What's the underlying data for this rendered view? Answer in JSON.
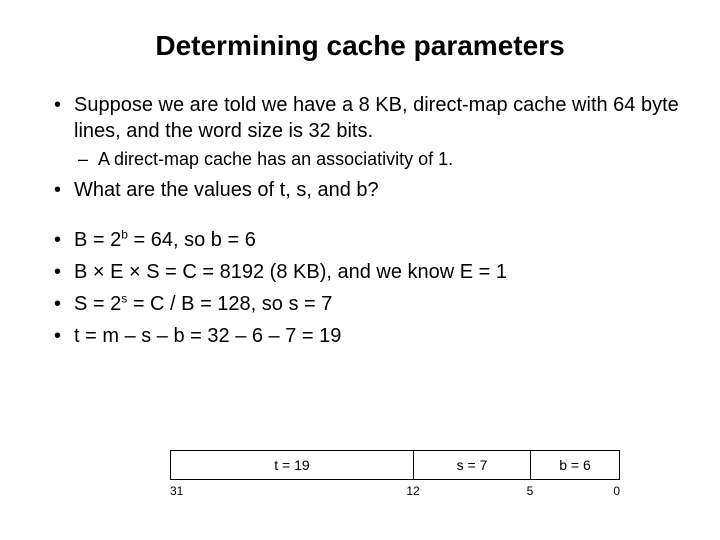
{
  "title": "Determining cache parameters",
  "bullets": {
    "b1": "Suppose we are told we have a 8 KB, direct-map cache with 64 byte lines, and the word size is 32 bits.",
    "sub1": "A direct-map cache has an associativity of 1.",
    "b2": "What are the values of t, s, and b?",
    "b3_pre": "B = 2",
    "b3_sup": "b",
    "b3_post": " = 64, so b = 6",
    "b4": "B × E × S = C = 8192 (8 KB), and we know E = 1",
    "b5_pre": "S = 2",
    "b5_sup": "s",
    "b5_post": " = C / B = 128, so s = 7",
    "b6": "t = m – s – b = 32 – 6 – 7 = 19"
  },
  "diagram": {
    "t_label": "t = 19",
    "s_label": "s = 7",
    "b_label": "b = 6",
    "tick_left": "31",
    "tick_mid1": "12",
    "tick_mid2": "5",
    "tick_right": "0"
  }
}
